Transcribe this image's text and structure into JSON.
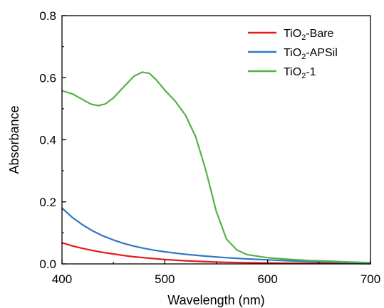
{
  "chart_data": {
    "type": "line",
    "xlabel": "Wavelength (nm)",
    "ylabel": "Absorbance",
    "xlim": [
      400,
      700
    ],
    "ylim": [
      0,
      0.8
    ],
    "x_ticks": [
      "400",
      "500",
      "600",
      "700"
    ],
    "y_ticks": [
      "0.0",
      "0.2",
      "0.4",
      "0.6",
      "0.8"
    ],
    "legend_position": "top-right",
    "grid": false,
    "series": [
      {
        "name_main": "TiO",
        "name_sub": "2",
        "name_tail": "-Bare",
        "color": "#e31a1c",
        "points": [
          [
            400,
            0.068
          ],
          [
            410,
            0.058
          ],
          [
            420,
            0.05
          ],
          [
            430,
            0.043
          ],
          [
            440,
            0.037
          ],
          [
            450,
            0.032
          ],
          [
            460,
            0.027
          ],
          [
            470,
            0.023
          ],
          [
            480,
            0.02
          ],
          [
            490,
            0.017
          ],
          [
            500,
            0.014
          ],
          [
            520,
            0.01
          ],
          [
            540,
            0.007
          ],
          [
            560,
            0.005
          ],
          [
            580,
            0.004
          ],
          [
            600,
            0.003
          ],
          [
            620,
            0.002
          ],
          [
            650,
            0.002
          ],
          [
            700,
            0.001
          ]
        ]
      },
      {
        "name_main": "TiO",
        "name_sub": "2",
        "name_tail": "-APSil",
        "color": "#2f78c4",
        "points": [
          [
            400,
            0.18
          ],
          [
            410,
            0.15
          ],
          [
            420,
            0.126
          ],
          [
            430,
            0.106
          ],
          [
            440,
            0.09
          ],
          [
            450,
            0.077
          ],
          [
            460,
            0.066
          ],
          [
            470,
            0.057
          ],
          [
            480,
            0.05
          ],
          [
            490,
            0.044
          ],
          [
            500,
            0.039
          ],
          [
            520,
            0.031
          ],
          [
            540,
            0.025
          ],
          [
            560,
            0.02
          ],
          [
            580,
            0.016
          ],
          [
            600,
            0.013
          ],
          [
            620,
            0.01
          ],
          [
            640,
            0.008
          ],
          [
            660,
            0.006
          ],
          [
            680,
            0.004
          ],
          [
            700,
            0.003
          ]
        ]
      },
      {
        "name_main": "TiO",
        "name_sub": "2",
        "name_tail": "-1",
        "color": "#52b343",
        "points": [
          [
            400,
            0.558
          ],
          [
            410,
            0.548
          ],
          [
            420,
            0.53
          ],
          [
            428,
            0.515
          ],
          [
            435,
            0.51
          ],
          [
            442,
            0.515
          ],
          [
            450,
            0.535
          ],
          [
            460,
            0.57
          ],
          [
            470,
            0.605
          ],
          [
            478,
            0.618
          ],
          [
            485,
            0.614
          ],
          [
            492,
            0.592
          ],
          [
            500,
            0.56
          ],
          [
            510,
            0.525
          ],
          [
            520,
            0.48
          ],
          [
            530,
            0.41
          ],
          [
            540,
            0.3
          ],
          [
            550,
            0.17
          ],
          [
            560,
            0.08
          ],
          [
            570,
            0.045
          ],
          [
            580,
            0.03
          ],
          [
            600,
            0.02
          ],
          [
            620,
            0.015
          ],
          [
            640,
            0.011
          ],
          [
            660,
            0.009
          ],
          [
            680,
            0.006
          ],
          [
            700,
            0.004
          ]
        ]
      }
    ]
  }
}
